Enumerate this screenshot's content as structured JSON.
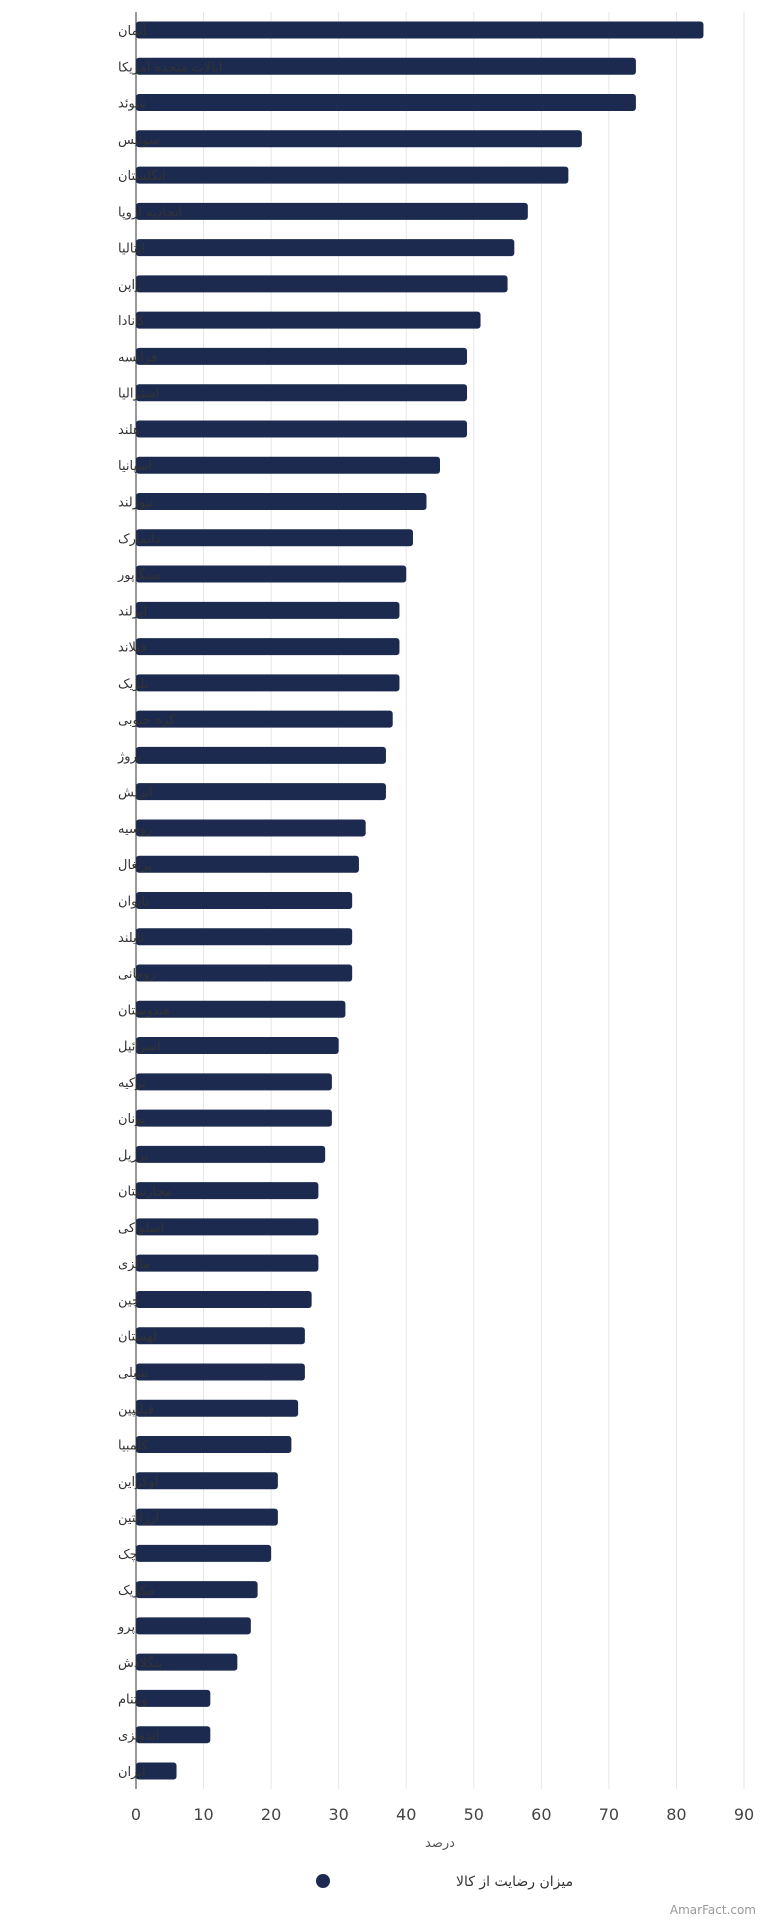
{
  "chart_data": {
    "type": "bar",
    "orientation": "horizontal",
    "categories": [
      "آلمان",
      "ایالات متحده آمریکا",
      "سوئد",
      "سوئیس",
      "انگلستان",
      "اتحادیه اروپا",
      "ایتالیا",
      "ژاپن",
      "کانادا",
      "فرانسه",
      "استرالیا",
      "هلند",
      "اسپانیا",
      "نیوزلند",
      "دانمارک",
      "سنگاپور",
      "ایرلند",
      "فنلاند",
      "بلژیک",
      "کره جنوبی",
      "نروژ",
      "اتریش",
      "روسیه",
      "پرتغال",
      "تایوان",
      "تایلند",
      "رومانی",
      "هندوستان",
      "اسرائیل",
      "ترکیه",
      "یونان",
      "برزیل",
      "مجارستان",
      "اسلواکی",
      "مالزی",
      "چین",
      "لهستان",
      "شیلی",
      "فیلیپین",
      "کلمبیا",
      "اوکراین",
      "آرژانتین",
      "چک",
      "مکزیک",
      "پرو",
      "بنگلادش",
      "ویتنام",
      "اندونزی",
      "ایران"
    ],
    "series": [
      {
        "name": "میزان رضایت از کالا",
        "values": [
          84,
          74,
          74,
          66,
          64,
          58,
          56,
          55,
          51,
          49,
          49,
          49,
          45,
          43,
          41,
          40,
          39,
          39,
          39,
          38,
          37,
          37,
          34,
          33,
          32,
          32,
          32,
          31,
          30,
          29,
          29,
          28,
          27,
          27,
          27,
          26,
          25,
          25,
          24,
          23,
          21,
          21,
          20,
          18,
          17,
          15,
          11,
          11,
          6
        ]
      }
    ],
    "xlabel": "درصد",
    "xlim": [
      0,
      90
    ],
    "xticks": [
      0,
      10,
      20,
      30,
      40,
      50,
      60,
      70,
      80,
      90
    ],
    "grid": true,
    "legend_position": "bottom-center",
    "bar_color": "#1c2a4f"
  },
  "credit": "AmarFact.com"
}
